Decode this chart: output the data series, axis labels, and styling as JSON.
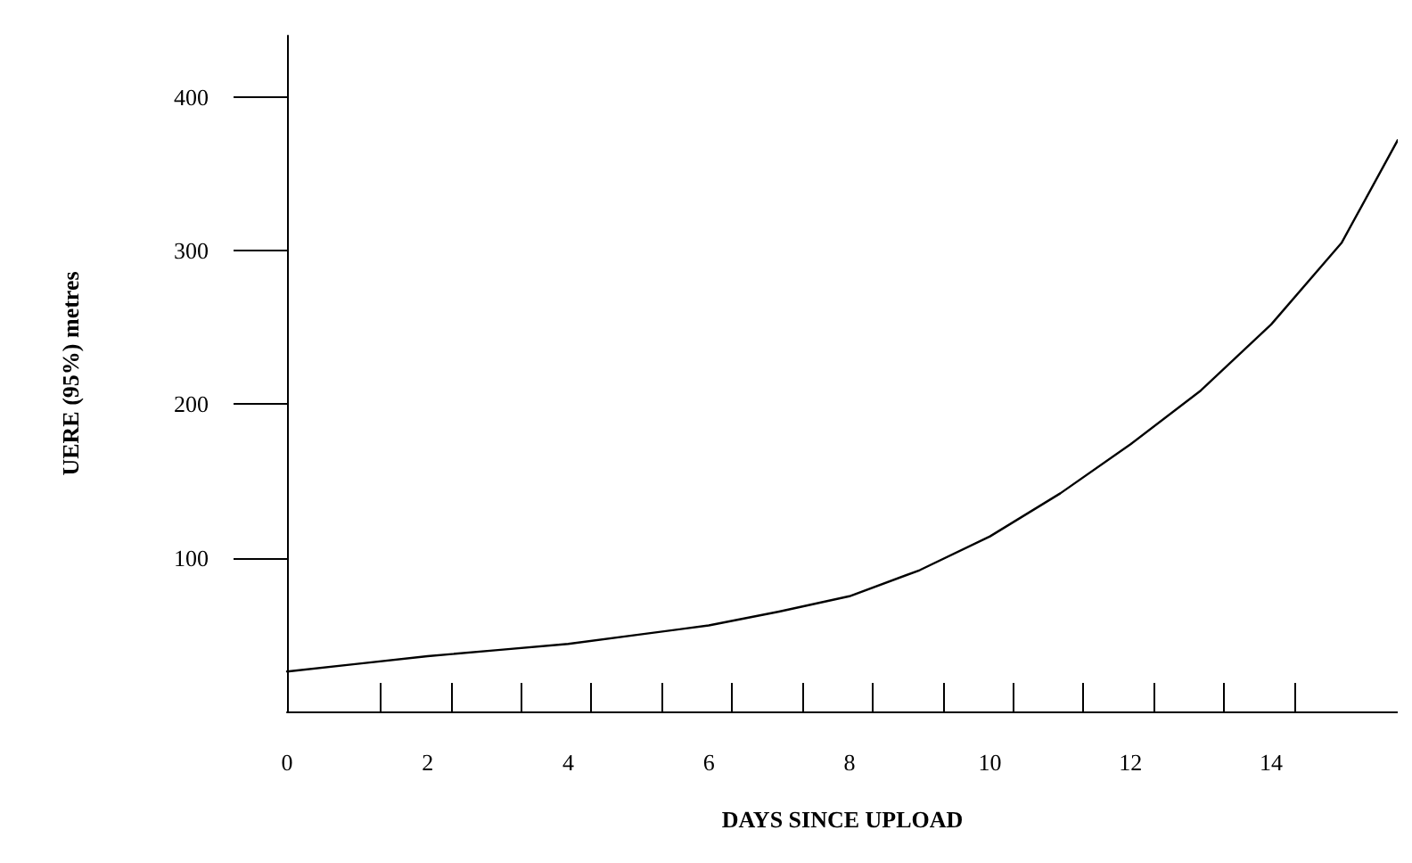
{
  "chart_data": {
    "type": "line",
    "xlabel": "DAYS SINCE UPLOAD",
    "ylabel": "UERE (95%) metres",
    "x": [
      0,
      1,
      2,
      3,
      4,
      5,
      6,
      7,
      8,
      9,
      10,
      11,
      12,
      13,
      14,
      15,
      15.8
    ],
    "series": [
      {
        "color": "#000000",
        "values": [
          26,
          31,
          36,
          40,
          44,
          50,
          56,
          65,
          75,
          92,
          114,
          142,
          174,
          209,
          252,
          305,
          372
        ]
      }
    ],
    "xlim": [
      0,
      15.8
    ],
    "xticks": [
      0,
      2,
      4,
      6,
      8,
      10,
      12,
      14,
      {
        "value": 1.33,
        "label": null
      },
      {
        "value": 2.33,
        "label": null
      },
      {
        "value": 3.33,
        "label": null
      },
      {
        "value": 4.33,
        "label": null
      },
      {
        "value": 5.33,
        "label": null
      },
      {
        "value": 6.33,
        "label": null
      },
      {
        "value": 7.33,
        "label": null
      },
      {
        "value": 8.33,
        "label": null
      },
      {
        "value": 9.33,
        "label": null
      },
      {
        "value": 10.33,
        "label": null
      },
      {
        "value": 11.33,
        "label": null
      },
      {
        "value": 12.33,
        "label": null
      },
      {
        "value": 13.33,
        "label": null
      },
      {
        "value": 14.33,
        "label": null
      }
    ],
    "ylim": [
      0,
      440
    ],
    "yticks": [
      100,
      200,
      300,
      400
    ],
    "grid": false,
    "marker": "none",
    "line_style": "solid"
  }
}
